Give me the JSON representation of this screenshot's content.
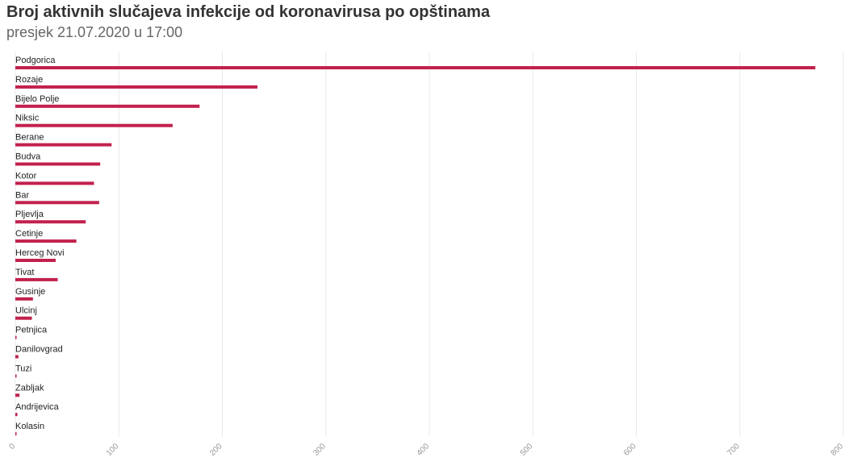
{
  "title": "Broj aktivnih slučajeva infekcije od koronavirusa po opštinama",
  "subtitle": "presjek 21.07.2020 u 17:00",
  "colors": {
    "bar": "#c2214d",
    "grid": "#e8e8e8",
    "text": "#222222",
    "tick": "#999999"
  },
  "chart_data": {
    "type": "bar",
    "orientation": "horizontal",
    "title": "Broj aktivnih slučajeva infekcije od koronavirusa po opštinama",
    "subtitle": "presjek 21.07.2020 u 17:00",
    "categories": [
      "Podgorica",
      "Rozaje",
      "Bijelo Polje",
      "Niksic",
      "Berane",
      "Budva",
      "Kotor",
      "Bar",
      "Pljevlja",
      "Cetinje",
      "Herceg Novi",
      "Tivat",
      "Gusinje",
      "Ulcinj",
      "Petnjica",
      "Danilovgrad",
      "Tuzi",
      "Zabljak",
      "Andrijevica",
      "Kolasin"
    ],
    "values": [
      773,
      234,
      178,
      152,
      93,
      82,
      76,
      81,
      68,
      59,
      39,
      41,
      17,
      16,
      1,
      3,
      0,
      4,
      2,
      1
    ],
    "xlim": [
      0,
      800
    ],
    "xticks": [
      0,
      100,
      200,
      300,
      400,
      500,
      600,
      700,
      800
    ],
    "xtick_labels": [
      "0",
      "100",
      "200",
      "300",
      "400",
      "500",
      "600",
      "700",
      "800"
    ],
    "grid": "vertical",
    "legend": "none"
  }
}
